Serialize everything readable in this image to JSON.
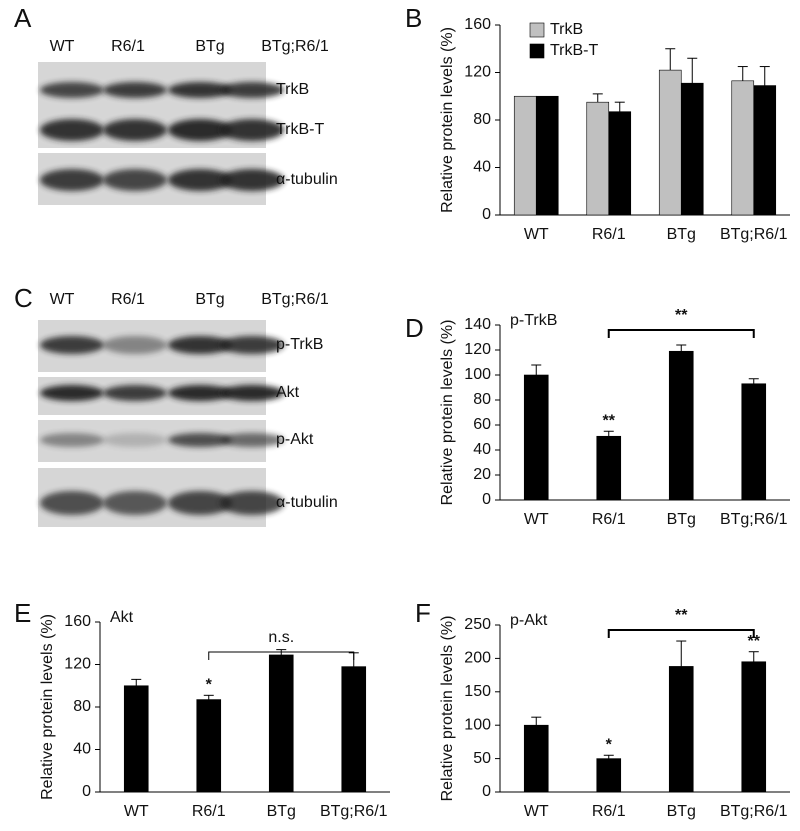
{
  "blots": [
    {
      "panel_label": "A",
      "lanes": [
        "WT",
        "R6/1",
        "BTg",
        "BTg;R6/1"
      ],
      "bands": [
        "TrkB",
        "TrkB-T",
        "α-tubulin"
      ]
    },
    {
      "panel_label": "C",
      "lanes": [
        "WT",
        "R6/1",
        "BTg",
        "BTg;R6/1"
      ],
      "bands": [
        "p-TrkB",
        "Akt",
        "p-Akt",
        "α-tubulin"
      ]
    }
  ],
  "chart_data": [
    {
      "type": "bar",
      "panel_label": "B",
      "y_label": "Relative protein levels (%)",
      "categories": [
        "WT",
        "R6/1",
        "BTg",
        "BTg;R6/1"
      ],
      "series": [
        {
          "name": "TrkB",
          "color": "#c0c0c0",
          "values": [
            100,
            95,
            122,
            113
          ],
          "errors": [
            null,
            7,
            18,
            12
          ]
        },
        {
          "name": "TrkB-T",
          "color": "#000000",
          "values": [
            100,
            87,
            111,
            109
          ],
          "errors": [
            null,
            8,
            21,
            16
          ]
        }
      ],
      "ylim": [
        0,
        160
      ],
      "yticks": [
        0,
        40,
        80,
        120,
        160
      ],
      "legend": "top-left"
    },
    {
      "type": "bar",
      "panel_label": "D",
      "title": "p-TrkB",
      "y_label": "Relative protein levels (%)",
      "categories": [
        "WT",
        "R6/1",
        "BTg",
        "BTg;R6/1"
      ],
      "series": [
        {
          "color": "#000000",
          "values": [
            100,
            51,
            119,
            93
          ],
          "errors": [
            8,
            4,
            5,
            4
          ],
          "significance": [
            null,
            "**",
            null,
            null
          ]
        }
      ],
      "comparison_label": "**",
      "ylim": [
        0,
        140
      ],
      "yticks": [
        0,
        20,
        40,
        60,
        80,
        100,
        120,
        140
      ]
    },
    {
      "type": "bar",
      "panel_label": "E",
      "title": "Akt",
      "y_label": "Relative protein levels (%)",
      "categories": [
        "WT",
        "R6/1",
        "BTg",
        "BTg;R6/1"
      ],
      "series": [
        {
          "color": "#000000",
          "values": [
            100,
            87,
            129,
            118
          ],
          "errors": [
            6,
            4,
            5,
            13
          ],
          "significance": [
            null,
            "*",
            null,
            null
          ]
        }
      ],
      "comparison_label": "n.s.",
      "ylim": [
        0,
        160
      ],
      "yticks": [
        0,
        40,
        80,
        120,
        160
      ]
    },
    {
      "type": "bar",
      "panel_label": "F",
      "title": "p-Akt",
      "y_label": "Relative protein levels (%)",
      "categories": [
        "WT",
        "R6/1",
        "BTg",
        "BTg;R6/1"
      ],
      "series": [
        {
          "color": "#000000",
          "values": [
            100,
            50,
            188,
            195
          ],
          "errors": [
            12,
            5,
            38,
            15
          ],
          "significance": [
            null,
            "*",
            null,
            "**"
          ]
        }
      ],
      "comparison_label": "**",
      "ylim": [
        0,
        250
      ],
      "yticks": [
        0,
        50,
        100,
        150,
        200,
        250
      ]
    }
  ]
}
